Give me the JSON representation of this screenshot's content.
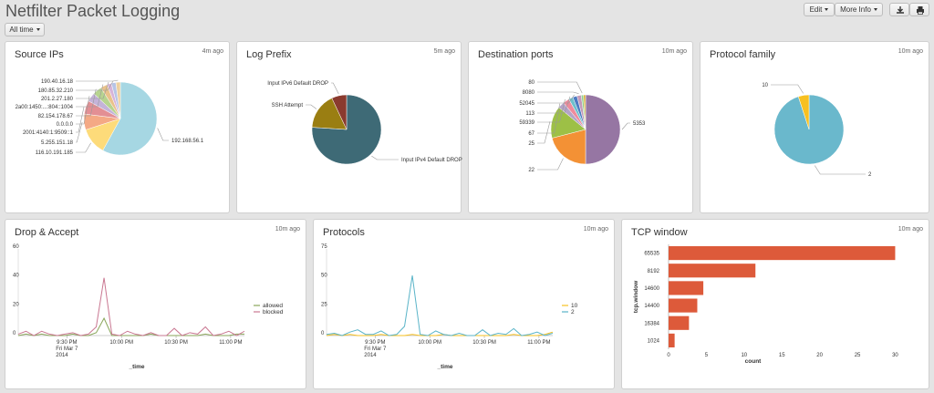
{
  "header": {
    "title": "Netfilter Packet Logging",
    "time_picker": "All time",
    "edit_label": "Edit",
    "more_info_label": "More Info",
    "export_icon": "download-icon",
    "print_icon": "print-icon"
  },
  "panels": {
    "source_ips": {
      "title": "Source IPs",
      "ago": "4m ago"
    },
    "log_prefix": {
      "title": "Log Prefix",
      "ago": "5m ago"
    },
    "dest_ports": {
      "title": "Destination ports",
      "ago": "10m ago"
    },
    "protocol_family": {
      "title": "Protocol family",
      "ago": "10m ago"
    },
    "drop_accept": {
      "title": "Drop & Accept",
      "ago": "10m ago"
    },
    "protocols": {
      "title": "Protocols",
      "ago": "10m ago"
    },
    "tcp_window": {
      "title": "TCP window",
      "ago": "10m ago"
    }
  },
  "chart_data": [
    {
      "id": "source_ips",
      "type": "pie",
      "colors": [
        "#a6d7e3",
        "#fddb7a",
        "#f4a985",
        "#e38f94",
        "#c4b3d9",
        "#b7d48f",
        "#e9c28b",
        "#d7b4d8",
        "#b7c4e6",
        "#eed09f"
      ],
      "labels": [
        "192.168.56.1",
        "116.10.191.185",
        "5.255.151.18",
        "2001:4140:1:9509::1",
        "0.0.0.0",
        "82.154.178.67",
        "2a00:1450:...:804::1004",
        "201.2.27.180",
        "180.85.32.210",
        "190.40.16.18"
      ],
      "values": [
        58,
        12,
        7,
        6,
        4,
        4,
        3,
        2,
        2,
        2
      ]
    },
    {
      "id": "log_prefix",
      "type": "pie",
      "colors": [
        "#3e6a76",
        "#9a7e12",
        "#8a3a2e"
      ],
      "labels": [
        "Input IPv4 Default DROP",
        "SSH Attempt",
        "Input IPv6 Default DROP"
      ],
      "values": [
        76,
        17,
        7
      ]
    },
    {
      "id": "dest_ports",
      "type": "pie",
      "colors": [
        "#9676a3",
        "#f39135",
        "#9dc046",
        "#b4a3c8",
        "#ee8b9c",
        "#6dc0cc",
        "#4d7ac1",
        "#c49ab8",
        "#8ecf8d",
        "#d9b13b"
      ],
      "labels": [
        "5353",
        "22",
        "25",
        "67",
        "59339",
        "113",
        "52045",
        "8080",
        "80",
        ""
      ],
      "values": [
        50,
        21,
        15,
        3,
        3,
        2,
        2,
        2,
        1,
        1
      ]
    },
    {
      "id": "protocol_family",
      "type": "pie",
      "colors": [
        "#6ab8cc",
        "#f7c020"
      ],
      "labels": [
        "2",
        "10"
      ],
      "values": [
        95,
        5
      ]
    },
    {
      "id": "drop_accept",
      "type": "line",
      "xlabel": "_time",
      "x_ticks": [
        {
          "l1": "9:30 PM",
          "l2": "Fri Mar 7",
          "l3": "2014"
        },
        {
          "l1": "10:00 PM",
          "l2": "",
          "l3": ""
        },
        {
          "l1": "10:30 PM",
          "l2": "",
          "l3": ""
        },
        {
          "l1": "11:00 PM",
          "l2": "",
          "l3": ""
        }
      ],
      "y_ticks": [
        0,
        20,
        40,
        60
      ],
      "ylim": [
        0,
        60
      ],
      "series": [
        {
          "name": "allowed",
          "color": "#8aa65a",
          "values": [
            0,
            1,
            0,
            1,
            0,
            0,
            0,
            1,
            0,
            0,
            2,
            12,
            0,
            0,
            0,
            0,
            0,
            1,
            0,
            0,
            0,
            0,
            0,
            0,
            1,
            0,
            0,
            0,
            1,
            1
          ]
        },
        {
          "name": "blocked",
          "color": "#c97791",
          "values": [
            1,
            3,
            0,
            3,
            1,
            0,
            1,
            2,
            0,
            1,
            6,
            40,
            1,
            0,
            3,
            1,
            0,
            2,
            0,
            0,
            5,
            0,
            2,
            1,
            6,
            0,
            1,
            3,
            0,
            3
          ]
        }
      ]
    },
    {
      "id": "protocols",
      "type": "line",
      "xlabel": "_time",
      "x_ticks": [
        {
          "l1": "9:30 PM",
          "l2": "Fri Mar 7",
          "l3": "2014"
        },
        {
          "l1": "10:00 PM",
          "l2": "",
          "l3": ""
        },
        {
          "l1": "10:30 PM",
          "l2": "",
          "l3": ""
        },
        {
          "l1": "11:00 PM",
          "l2": "",
          "l3": ""
        }
      ],
      "y_ticks": [
        0,
        25,
        50,
        75
      ],
      "ylim": [
        0,
        75
      ],
      "series": [
        {
          "name": "10",
          "color": "#f7c020",
          "values": [
            0,
            1,
            0,
            1,
            0,
            0,
            0,
            1,
            0,
            0,
            0,
            1,
            0,
            0,
            0,
            1,
            0,
            0,
            0,
            0,
            0,
            0,
            0,
            0,
            1,
            0,
            0,
            0,
            1,
            3
          ]
        },
        {
          "name": "2",
          "color": "#5ab4c8",
          "values": [
            1,
            2,
            0,
            3,
            5,
            1,
            1,
            4,
            0,
            1,
            8,
            52,
            1,
            0,
            4,
            1,
            0,
            2,
            0,
            0,
            5,
            0,
            2,
            1,
            6,
            0,
            1,
            3,
            0,
            2
          ]
        }
      ]
    },
    {
      "id": "tcp_window",
      "type": "bar",
      "color": "#dd5a3a",
      "categories": [
        "65535",
        "8192",
        "14600",
        "14400",
        "16384",
        "1024"
      ],
      "values": [
        30,
        11.5,
        4.6,
        3.8,
        2.7,
        0.8
      ],
      "xlabel": "count",
      "ylabel": "tcp.window",
      "x_ticks": [
        0,
        5,
        10,
        15,
        20,
        25,
        30
      ],
      "xlim": [
        0,
        32
      ]
    }
  ]
}
